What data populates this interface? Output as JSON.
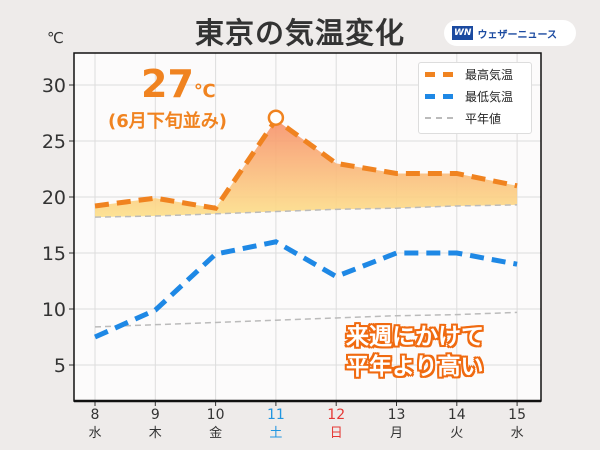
{
  "chart_data": {
    "type": "line",
    "title": "東京の気温変化",
    "ylabel": "℃",
    "ylim": [
      1.8,
      33
    ],
    "yticks": [
      5,
      10,
      15,
      20,
      25,
      30
    ],
    "x": [
      8,
      9,
      10,
      11,
      12,
      13,
      14,
      15
    ],
    "categories": [
      "8",
      "9",
      "10",
      "11",
      "12",
      "13",
      "14",
      "15"
    ],
    "weekdays": [
      "水",
      "木",
      "金",
      "土",
      "日",
      "月",
      "火",
      "水"
    ],
    "series": [
      {
        "name": "最高気温",
        "color": "#f08320",
        "values": [
          19.2,
          19.9,
          19.0,
          26.9,
          23.0,
          22.1,
          22.1,
          21.0
        ]
      },
      {
        "name": "最低気温",
        "color": "#1e88e5",
        "values": [
          7.5,
          9.9,
          14.9,
          16.0,
          12.9,
          15.0,
          15.0,
          14.0
        ]
      },
      {
        "name": "平年値",
        "color": "#bbbbbb",
        "values_high": [
          18.2,
          18.3,
          18.5,
          18.7,
          18.9,
          19.0,
          19.2,
          19.3
        ],
        "values_low": [
          8.4,
          8.6,
          8.8,
          9.0,
          9.2,
          9.4,
          9.5,
          9.7
        ]
      }
    ],
    "grid": true,
    "legend_position": "top-right",
    "annotations": {
      "peak_value": "27",
      "peak_unit": "℃",
      "peak_note": "(6月下旬並み)",
      "comment_line1": "来週にかけて",
      "comment_line2": "平年より高い"
    }
  },
  "unit": "℃",
  "logo": {
    "mark": "WN",
    "text": "ウェザーニュース"
  },
  "colors": {
    "saturday": "#2196e0",
    "sunday": "#e53935",
    "text": "#333333"
  }
}
